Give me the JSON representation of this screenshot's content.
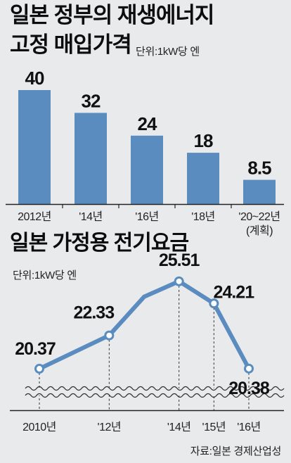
{
  "chart_data": [
    {
      "type": "bar",
      "title": "일본 정부의 재생에너지 고정 매입가격",
      "title_line1": "일본 정부의 재생에너지",
      "title_line2": "고정 매입가격",
      "unit": "단위:1kW당 엔",
      "categories": [
        "2012년",
        "'14년",
        "'16년",
        "'18년",
        "'20~22년"
      ],
      "category_note": "(계획)",
      "values": [
        40,
        32,
        24,
        18,
        8.5
      ],
      "value_labels": [
        "40",
        "32",
        "24",
        "18",
        "8.5"
      ],
      "ylim": [
        0,
        40
      ],
      "grid": false,
      "bar_color": "#5b8cc0"
    },
    {
      "type": "line",
      "title": "일본 가정용 전기요금",
      "unit": "단위:1kW당 엔",
      "x_labels": [
        "2010년",
        "'12년",
        "'14년",
        "'15년",
        "'16년"
      ],
      "points": [
        {
          "x": 2010,
          "y": 20.37,
          "label": "20.37"
        },
        {
          "x": 2012,
          "y": 22.33,
          "label": "22.33"
        },
        {
          "x": 2013,
          "y": 24.6
        },
        {
          "x": 2014,
          "y": 25.51,
          "label": "25.51"
        },
        {
          "x": 2015,
          "y": 24.21,
          "label": "24.21"
        },
        {
          "x": 2016,
          "y": 20.38,
          "label": "20.38"
        }
      ],
      "axis_break": true,
      "line_color": "#5b8cc0"
    }
  ],
  "source": "자료:일본 경제산업성"
}
